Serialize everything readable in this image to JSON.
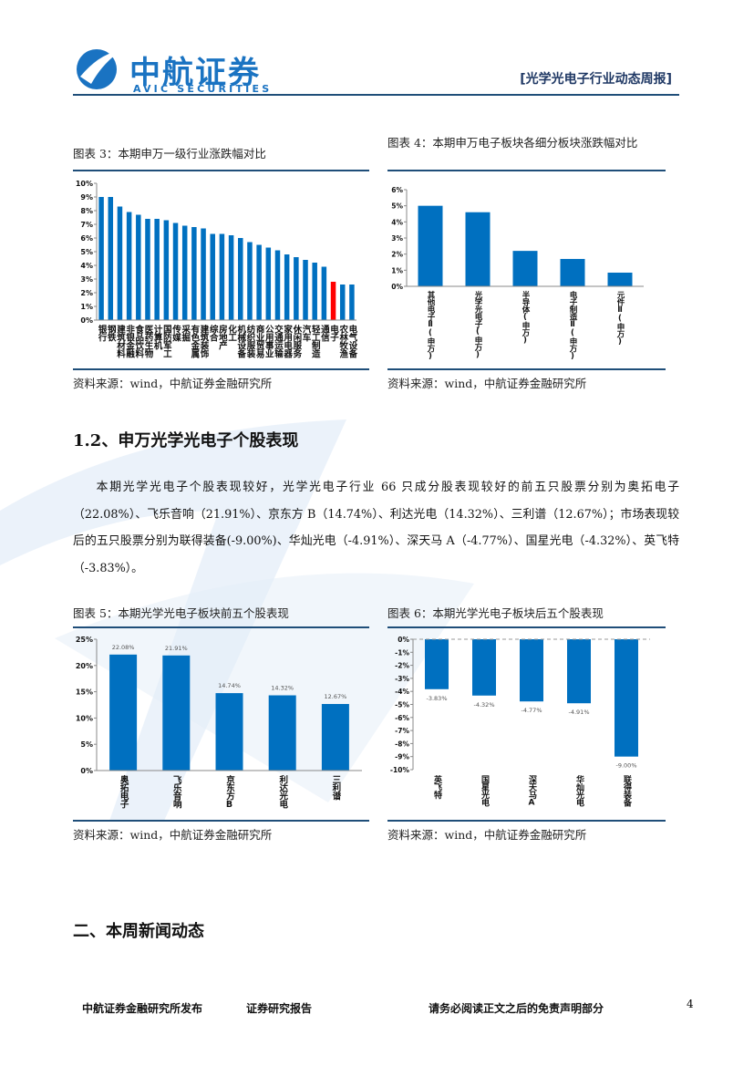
{
  "header": {
    "logo_cn": "中航证券",
    "logo_en": "AVIC SECURITIES",
    "report_name": "[光学光电子行业动态周报]"
  },
  "section_1_2": {
    "heading": "1.2、申万光学光电子个股表现",
    "paragraph": "本期光学光电子个股表现较好，光学光电子行业 66 只成分股表现较好的前五只股票分别为奥拓电子（22.08%）、飞乐音响（21.91%）、京东方 B（14.74%）、利达光电（14.32%）、三利谱（12.67%）；市场表现较后的五只股票分别为联得装备(-9.00%)、华灿光电（-4.91%）、深天马 A（-4.77%）、国星光电（-4.32%）、英飞特（-3.83%）。"
  },
  "section_2": {
    "heading": "二、本周新闻动态"
  },
  "footer": {
    "publisher": "中航证券金融研究所发布",
    "report_type": "证券研究报告",
    "disclaimer": "请务必阅读正文之后的免责声明部分",
    "page_number": "4"
  },
  "chart_data": [
    {
      "type": "bar",
      "title": "图表 3：本期申万一级行业涨跌幅对比",
      "source": "资料来源：wind，中航证券金融研究所",
      "categories": [
        "银行",
        "钢铁",
        "建筑材料",
        "非银金融",
        "食品饮料",
        "医药生物",
        "计算机",
        "国防军工",
        "传媒",
        "采掘",
        "有色金属",
        "建筑装饰",
        "综合",
        "房地产",
        "化工",
        "机械设备",
        "纺织服装",
        "商业贸易",
        "公用事业",
        "交通运输",
        "家用电器",
        "休闲服务",
        "汽车",
        "轻工制造",
        "通信",
        "电子",
        "农林牧渔",
        "电气设备"
      ],
      "values": [
        9.0,
        9.0,
        8.3,
        7.9,
        7.7,
        7.4,
        7.4,
        7.3,
        7.1,
        6.9,
        6.8,
        6.7,
        6.3,
        6.3,
        6.2,
        6.0,
        5.7,
        5.5,
        5.3,
        5.1,
        4.8,
        4.6,
        4.4,
        4.2,
        3.9,
        2.8,
        2.6,
        2.6
      ],
      "colors": [
        "#0070c0",
        "#0070c0",
        "#0070c0",
        "#0070c0",
        "#0070c0",
        "#0070c0",
        "#0070c0",
        "#0070c0",
        "#0070c0",
        "#0070c0",
        "#0070c0",
        "#0070c0",
        "#0070c0",
        "#0070c0",
        "#0070c0",
        "#0070c0",
        "#0070c0",
        "#0070c0",
        "#0070c0",
        "#0070c0",
        "#0070c0",
        "#0070c0",
        "#0070c0",
        "#0070c0",
        "#0070c0",
        "#ff0000",
        "#0070c0",
        "#0070c0"
      ],
      "ylim": [
        0,
        10
      ],
      "yticks": [
        {
          "value": 0,
          "label": "0%"
        },
        {
          "value": 1,
          "label": "1%"
        },
        {
          "value": 2,
          "label": "2%"
        },
        {
          "value": 3,
          "label": "3%"
        },
        {
          "value": 4,
          "label": "4%"
        },
        {
          "value": 5,
          "label": "5%"
        },
        {
          "value": 6,
          "label": "6%"
        },
        {
          "value": 7,
          "label": "7%"
        },
        {
          "value": 8,
          "label": "8%"
        },
        {
          "value": 9,
          "label": "9%"
        },
        {
          "value": 10,
          "label": "10%"
        }
      ]
    },
    {
      "type": "bar",
      "title": "图表 4：本期申万电子板块各细分板块涨跌幅对比",
      "source": "资料来源：wind，中航证券金融研究所",
      "categories": [
        "其他电子Ⅱ(申万)",
        "光学光电子(申万)",
        "半导体(申万)",
        "电子制造Ⅱ(申万)",
        "元件Ⅱ(申万)"
      ],
      "values": [
        5.0,
        4.6,
        2.2,
        1.7,
        0.85
      ],
      "color": "#0070c0",
      "ylim": [
        0,
        6
      ],
      "yticks": [
        {
          "value": 0,
          "label": "0%"
        },
        {
          "value": 1,
          "label": "1%"
        },
        {
          "value": 2,
          "label": "2%"
        },
        {
          "value": 3,
          "label": "3%"
        },
        {
          "value": 4,
          "label": "4%"
        },
        {
          "value": 5,
          "label": "5%"
        },
        {
          "value": 6,
          "label": "6%"
        }
      ]
    },
    {
      "type": "bar",
      "title": "图表 5：本期光学光电子板块前五个股表现",
      "source": "资料来源：wind，中航证券金融研究所",
      "categories": [
        "奥拓电子",
        "飞乐音响",
        "京东方B",
        "利达光电",
        "三利谱"
      ],
      "values": [
        22.08,
        21.91,
        14.74,
        14.32,
        12.67
      ],
      "value_labels": [
        "22.08%",
        "21.91%",
        "14.74%",
        "14.32%",
        "12.67%"
      ],
      "color": "#0070c0",
      "ylim": [
        0,
        25
      ],
      "yticks": [
        {
          "value": 0,
          "label": "0%"
        },
        {
          "value": 5,
          "label": "5%"
        },
        {
          "value": 10,
          "label": "10%"
        },
        {
          "value": 15,
          "label": "15%"
        },
        {
          "value": 20,
          "label": "20%"
        },
        {
          "value": 25,
          "label": "25%"
        }
      ]
    },
    {
      "type": "bar",
      "title": "图表 6：本期光学光电子板块后五个股表现",
      "source": "资料来源：wind，中航证券金融研究所",
      "categories": [
        "英飞特",
        "国星光电",
        "深天马A",
        "华灿光电",
        "联得装备"
      ],
      "values": [
        -3.83,
        -4.32,
        -4.77,
        -4.91,
        -9.0
      ],
      "value_labels": [
        "-3.83%",
        "-4.32%",
        "-4.77%",
        "-4.91%",
        "-9.00%"
      ],
      "color": "#0070c0",
      "ylim": [
        -10,
        0
      ],
      "axis_line_style": "dashed",
      "yticks": [
        {
          "value": 0,
          "label": "0%"
        },
        {
          "value": -1,
          "label": "-1%"
        },
        {
          "value": -2,
          "label": "-2%"
        },
        {
          "value": -3,
          "label": "-3%"
        },
        {
          "value": -4,
          "label": "-4%"
        },
        {
          "value": -5,
          "label": "-5%"
        },
        {
          "value": -6,
          "label": "-6%"
        },
        {
          "value": -7,
          "label": "-7%"
        },
        {
          "value": -8,
          "label": "-8%"
        },
        {
          "value": -9,
          "label": "-9%"
        },
        {
          "value": -10,
          "label": "-10%"
        }
      ]
    }
  ]
}
